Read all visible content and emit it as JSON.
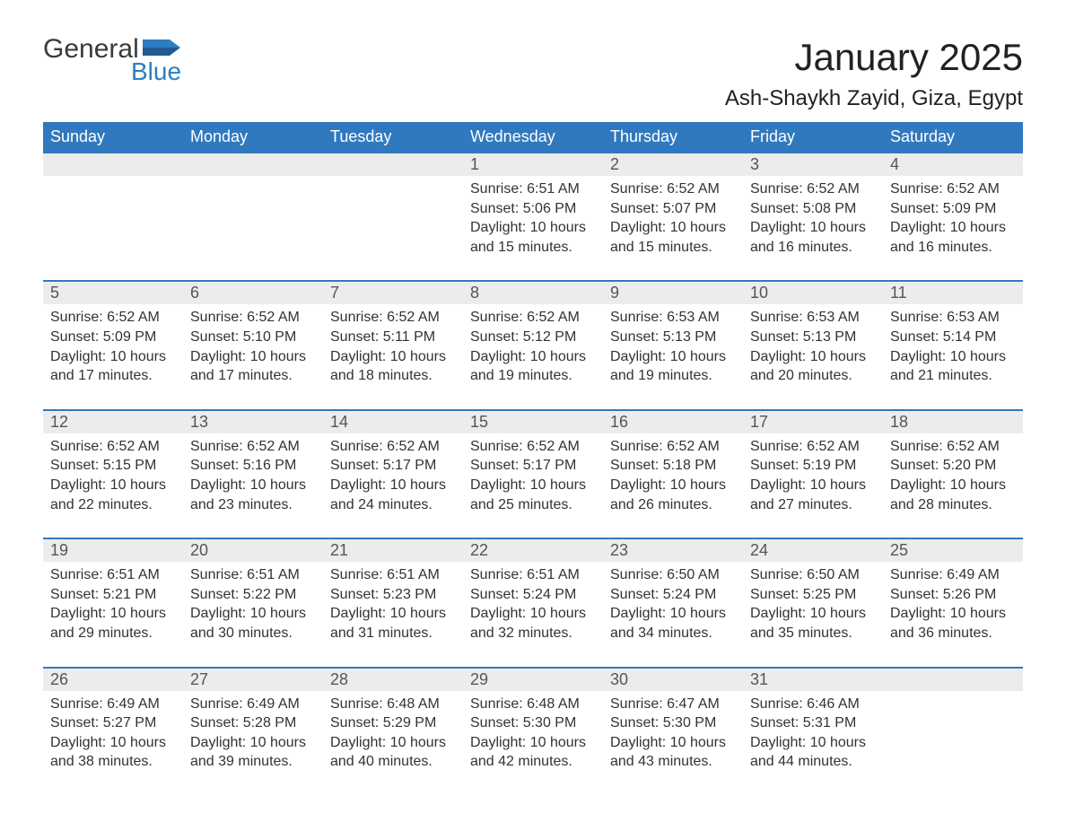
{
  "logo": {
    "word1": "General",
    "word2": "Blue"
  },
  "title": "January 2025",
  "location": "Ash-Shaykh Zayid, Giza, Egypt",
  "colors": {
    "header_bg": "#3179be",
    "header_text": "#ffffff",
    "daynum_bg": "#ececec",
    "row_border": "#3179be",
    "body_text": "#333333",
    "logo_blue": "#2d7dc2",
    "page_bg": "#ffffff"
  },
  "layout": {
    "type": "calendar-table",
    "columns": 7,
    "weeks": 5,
    "col_width_pct": 14.28,
    "th_fontsize": 18,
    "daynum_fontsize": 18,
    "detail_fontsize": 16,
    "title_fontsize": 42,
    "location_fontsize": 24
  },
  "day_headers": [
    "Sunday",
    "Monday",
    "Tuesday",
    "Wednesday",
    "Thursday",
    "Friday",
    "Saturday"
  ],
  "labels": {
    "sunrise": "Sunrise:",
    "sunset": "Sunset:",
    "daylight": "Daylight:"
  },
  "weeks": [
    [
      null,
      null,
      null,
      {
        "n": "1",
        "sunrise": "6:51 AM",
        "sunset": "5:06 PM",
        "daylight": "10 hours and 15 minutes."
      },
      {
        "n": "2",
        "sunrise": "6:52 AM",
        "sunset": "5:07 PM",
        "daylight": "10 hours and 15 minutes."
      },
      {
        "n": "3",
        "sunrise": "6:52 AM",
        "sunset": "5:08 PM",
        "daylight": "10 hours and 16 minutes."
      },
      {
        "n": "4",
        "sunrise": "6:52 AM",
        "sunset": "5:09 PM",
        "daylight": "10 hours and 16 minutes."
      }
    ],
    [
      {
        "n": "5",
        "sunrise": "6:52 AM",
        "sunset": "5:09 PM",
        "daylight": "10 hours and 17 minutes."
      },
      {
        "n": "6",
        "sunrise": "6:52 AM",
        "sunset": "5:10 PM",
        "daylight": "10 hours and 17 minutes."
      },
      {
        "n": "7",
        "sunrise": "6:52 AM",
        "sunset": "5:11 PM",
        "daylight": "10 hours and 18 minutes."
      },
      {
        "n": "8",
        "sunrise": "6:52 AM",
        "sunset": "5:12 PM",
        "daylight": "10 hours and 19 minutes."
      },
      {
        "n": "9",
        "sunrise": "6:53 AM",
        "sunset": "5:13 PM",
        "daylight": "10 hours and 19 minutes."
      },
      {
        "n": "10",
        "sunrise": "6:53 AM",
        "sunset": "5:13 PM",
        "daylight": "10 hours and 20 minutes."
      },
      {
        "n": "11",
        "sunrise": "6:53 AM",
        "sunset": "5:14 PM",
        "daylight": "10 hours and 21 minutes."
      }
    ],
    [
      {
        "n": "12",
        "sunrise": "6:52 AM",
        "sunset": "5:15 PM",
        "daylight": "10 hours and 22 minutes."
      },
      {
        "n": "13",
        "sunrise": "6:52 AM",
        "sunset": "5:16 PM",
        "daylight": "10 hours and 23 minutes."
      },
      {
        "n": "14",
        "sunrise": "6:52 AM",
        "sunset": "5:17 PM",
        "daylight": "10 hours and 24 minutes."
      },
      {
        "n": "15",
        "sunrise": "6:52 AM",
        "sunset": "5:17 PM",
        "daylight": "10 hours and 25 minutes."
      },
      {
        "n": "16",
        "sunrise": "6:52 AM",
        "sunset": "5:18 PM",
        "daylight": "10 hours and 26 minutes."
      },
      {
        "n": "17",
        "sunrise": "6:52 AM",
        "sunset": "5:19 PM",
        "daylight": "10 hours and 27 minutes."
      },
      {
        "n": "18",
        "sunrise": "6:52 AM",
        "sunset": "5:20 PM",
        "daylight": "10 hours and 28 minutes."
      }
    ],
    [
      {
        "n": "19",
        "sunrise": "6:51 AM",
        "sunset": "5:21 PM",
        "daylight": "10 hours and 29 minutes."
      },
      {
        "n": "20",
        "sunrise": "6:51 AM",
        "sunset": "5:22 PM",
        "daylight": "10 hours and 30 minutes."
      },
      {
        "n": "21",
        "sunrise": "6:51 AM",
        "sunset": "5:23 PM",
        "daylight": "10 hours and 31 minutes."
      },
      {
        "n": "22",
        "sunrise": "6:51 AM",
        "sunset": "5:24 PM",
        "daylight": "10 hours and 32 minutes."
      },
      {
        "n": "23",
        "sunrise": "6:50 AM",
        "sunset": "5:24 PM",
        "daylight": "10 hours and 34 minutes."
      },
      {
        "n": "24",
        "sunrise": "6:50 AM",
        "sunset": "5:25 PM",
        "daylight": "10 hours and 35 minutes."
      },
      {
        "n": "25",
        "sunrise": "6:49 AM",
        "sunset": "5:26 PM",
        "daylight": "10 hours and 36 minutes."
      }
    ],
    [
      {
        "n": "26",
        "sunrise": "6:49 AM",
        "sunset": "5:27 PM",
        "daylight": "10 hours and 38 minutes."
      },
      {
        "n": "27",
        "sunrise": "6:49 AM",
        "sunset": "5:28 PM",
        "daylight": "10 hours and 39 minutes."
      },
      {
        "n": "28",
        "sunrise": "6:48 AM",
        "sunset": "5:29 PM",
        "daylight": "10 hours and 40 minutes."
      },
      {
        "n": "29",
        "sunrise": "6:48 AM",
        "sunset": "5:30 PM",
        "daylight": "10 hours and 42 minutes."
      },
      {
        "n": "30",
        "sunrise": "6:47 AM",
        "sunset": "5:30 PM",
        "daylight": "10 hours and 43 minutes."
      },
      {
        "n": "31",
        "sunrise": "6:46 AM",
        "sunset": "5:31 PM",
        "daylight": "10 hours and 44 minutes."
      },
      null
    ]
  ]
}
